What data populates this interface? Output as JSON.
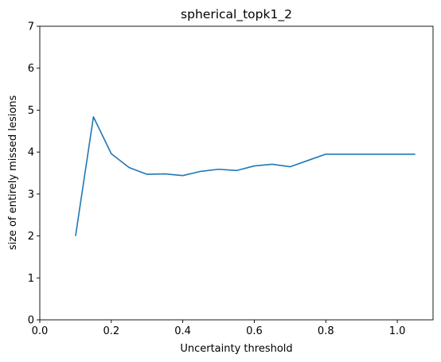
{
  "chart_data": {
    "type": "line",
    "title": "spherical_topk1_2",
    "xlabel": "Uncertainty threshold",
    "ylabel": "size of entirely missed lesions",
    "xlim": [
      0.0,
      1.1
    ],
    "ylim": [
      0,
      7
    ],
    "xticks": [
      0.0,
      0.2,
      0.4,
      0.6,
      0.8,
      1.0
    ],
    "xtick_labels": [
      "0.0",
      "0.2",
      "0.4",
      "0.6",
      "0.8",
      "1.0"
    ],
    "yticks": [
      0,
      1,
      2,
      3,
      4,
      5,
      6,
      7
    ],
    "ytick_labels": [
      "0",
      "1",
      "2",
      "3",
      "4",
      "5",
      "6",
      "7"
    ],
    "grid": false,
    "series": [
      {
        "color": "#1f77b4",
        "x": [
          0.1,
          0.15,
          0.2,
          0.25,
          0.3,
          0.35,
          0.4,
          0.45,
          0.5,
          0.55,
          0.6,
          0.65,
          0.7,
          0.75,
          0.8,
          0.85,
          0.9,
          0.95,
          1.0,
          1.05
        ],
        "y": [
          2.0,
          4.84,
          3.96,
          3.63,
          3.47,
          3.48,
          3.44,
          3.54,
          3.59,
          3.56,
          3.67,
          3.71,
          3.65,
          3.8,
          3.95,
          3.95,
          3.95,
          3.95,
          3.95,
          3.95
        ]
      }
    ]
  }
}
